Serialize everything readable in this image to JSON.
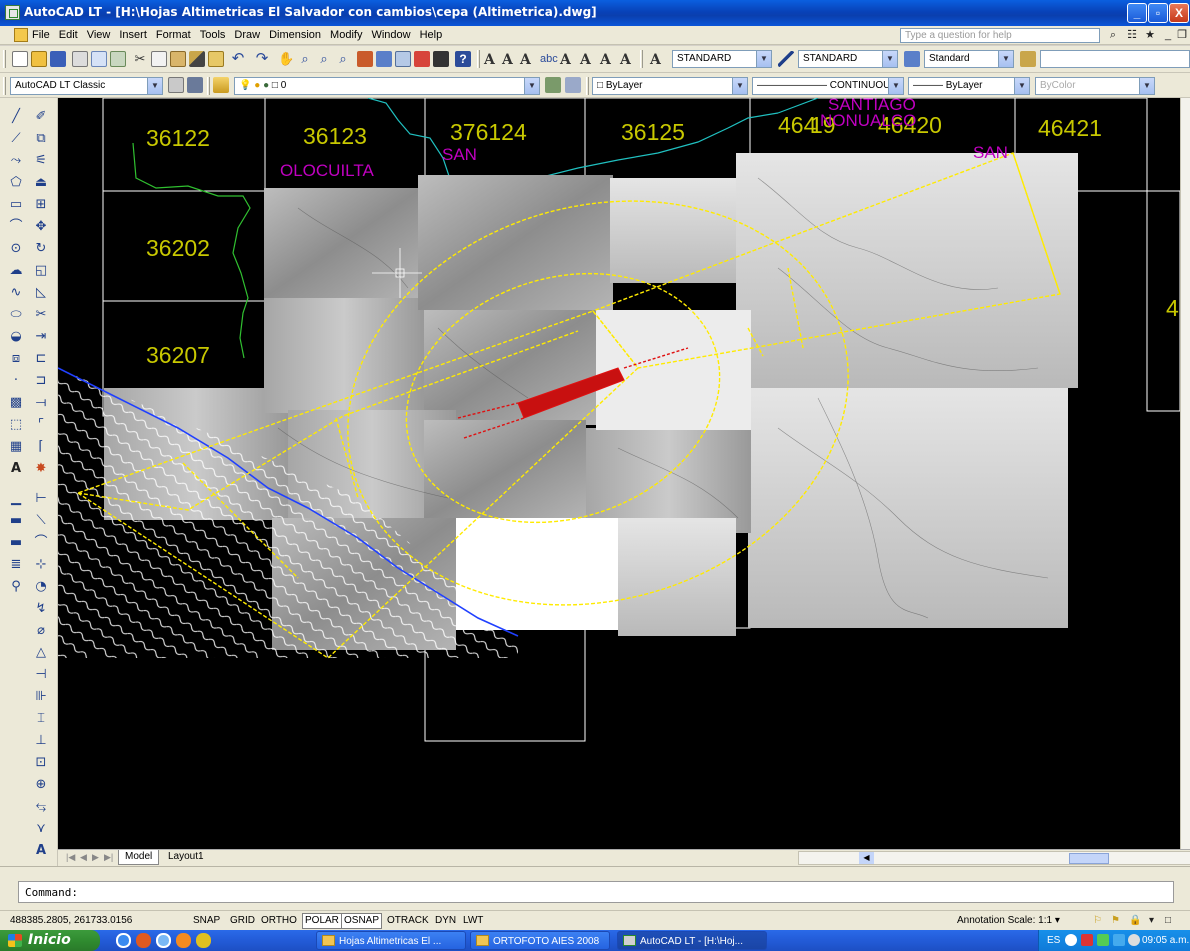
{
  "window": {
    "title": "AutoCAD LT - [H:\\Hojas Altimetricas El Salvador con cambios\\cepa (Altimetrica).dwg]",
    "min_label": "_",
    "max_label": "▫",
    "close_label": "X"
  },
  "menubar": {
    "items": [
      "File",
      "Edit",
      "View",
      "Insert",
      "Format",
      "Tools",
      "Draw",
      "Dimension",
      "Modify",
      "Window",
      "Help"
    ],
    "help_placeholder": "Type a question for help"
  },
  "toolbar1": {
    "text_style": "STANDARD",
    "dim_style": "STANDARD",
    "table_style": "Standard"
  },
  "toolbar2": {
    "workspace": "AutoCAD LT Classic",
    "layer": "0",
    "color": "ByLayer",
    "linetype": "CONTINUOUS",
    "lineweight": "ByLayer",
    "plotstyle": "ByColor"
  },
  "drawing": {
    "sheet_labels": [
      {
        "text": "36122",
        "color": "#c8c800"
      },
      {
        "text": "36123",
        "color": "#c8c800"
      },
      {
        "text": "376124",
        "color": "#c8c800"
      },
      {
        "text": "36125",
        "color": "#c8c800"
      },
      {
        "text": "464",
        "color": "#c8c800"
      },
      {
        "text": "19",
        "color": "#c8c800"
      },
      {
        "text": "46420",
        "color": "#c8c800"
      },
      {
        "text": "46421",
        "color": "#c8c800"
      },
      {
        "text": "36202",
        "color": "#c8c800"
      },
      {
        "text": "36207",
        "color": "#c8c800"
      },
      {
        "text": "4",
        "color": "#c8c800"
      }
    ],
    "place_labels": [
      {
        "text": "OLOCUILTA",
        "color": "#c000c0"
      },
      {
        "text": "SAN",
        "color": "#c000c0"
      },
      {
        "text": "SANTIAGO",
        "color": "#c000c0"
      },
      {
        "text": "NONUALCO",
        "color": "#c000c0"
      },
      {
        "text": "SAN",
        "color": "#c000c0"
      }
    ]
  },
  "tabs": {
    "model": "Model",
    "layout1": "Layout1"
  },
  "command": {
    "prompt": "Command:"
  },
  "status": {
    "coordinates": "488385.2805, 261733.0156",
    "toggles": [
      "SNAP",
      "GRID",
      "ORTHO",
      "POLAR",
      "OSNAP",
      "OTRACK",
      "DYN",
      "LWT"
    ],
    "active_toggles": [
      "POLAR",
      "OSNAP"
    ],
    "annotation_scale": "Annotation Scale:  1:1 ▾"
  },
  "taskbar": {
    "start_label": "Inicio",
    "tasks": [
      "Hojas Altimetricas El ...",
      "ORTOFOTO AIES 2008",
      "AutoCAD LT - [H:\\Hoj..."
    ],
    "language": "ES",
    "clock": "09:05 a.m."
  },
  "colors": {
    "titlebar": "#0a4fd0",
    "canvas": "#000000",
    "sheet_grid": "#ffffff",
    "sheet_number": "#c8c800",
    "place_name": "#c000c0",
    "funnel": "#ffeb00",
    "runway": "#e01010",
    "coast": "#2040ff"
  }
}
